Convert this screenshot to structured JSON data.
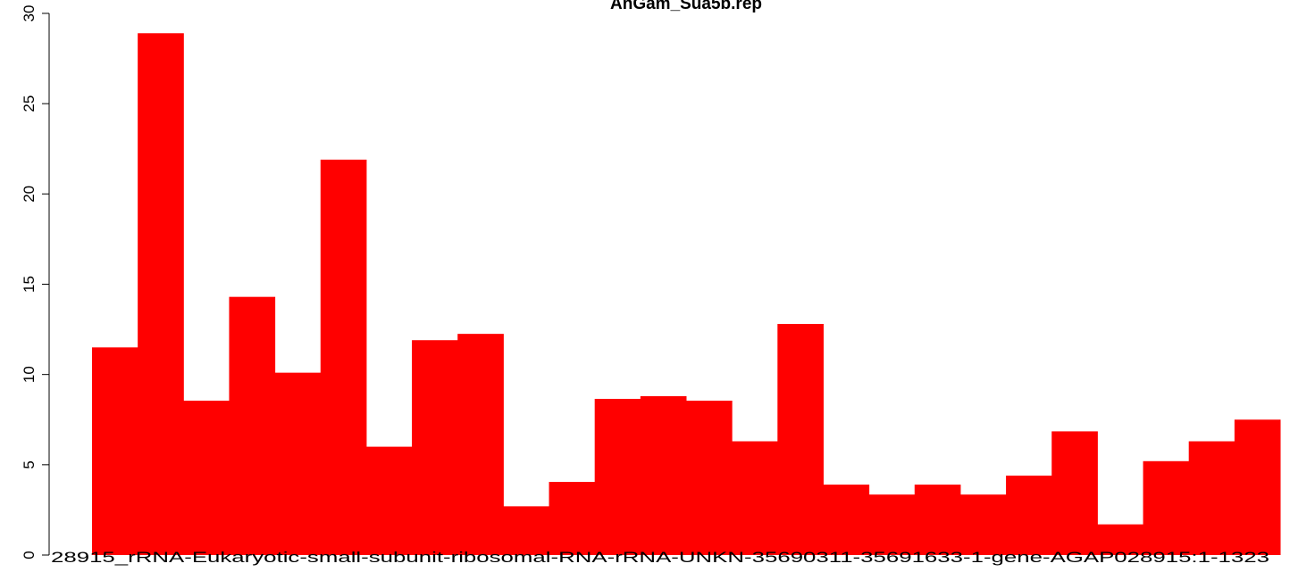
{
  "chart_data": {
    "type": "bar",
    "title": "AnGam_Sua5b.rep",
    "categories": [
      null,
      null,
      null,
      null,
      null,
      null,
      null,
      null,
      null,
      null,
      null,
      null,
      null,
      null,
      null,
      null,
      null,
      null,
      null,
      null,
      null,
      null,
      null,
      null,
      null,
      null
    ],
    "values": [
      11.5,
      28.9,
      8.55,
      14.3,
      10.1,
      21.9,
      6.0,
      11.9,
      12.25,
      2.7,
      4.05,
      8.65,
      8.8,
      8.55,
      6.3,
      12.8,
      3.9,
      3.35,
      3.9,
      3.35,
      4.4,
      6.85,
      1.7,
      5.2,
      6.3,
      7.5
    ],
    "color": "#ff0000",
    "ylim": [
      0,
      30
    ],
    "yticks": [
      0,
      5,
      10,
      15,
      20,
      25,
      30
    ],
    "grid": false,
    "annotation": "28915_rRNA-Eukaryotic-small-subunit-ribosomal-RNA-rRNA-UNKN-35690311-35691633-1-gene-AGAP028915:1-1323"
  }
}
